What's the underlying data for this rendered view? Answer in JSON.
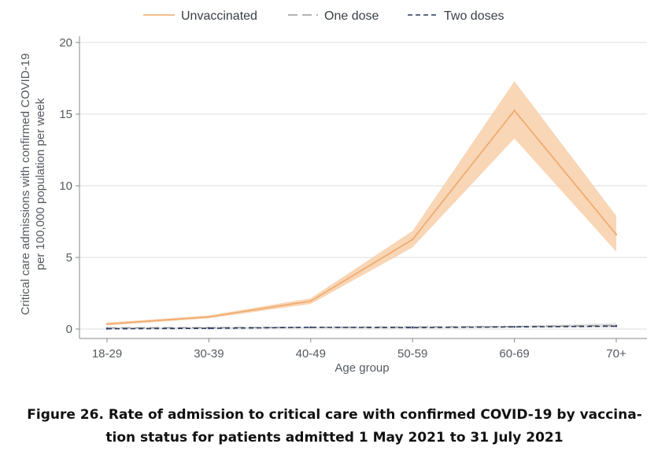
{
  "chart_data": {
    "type": "line",
    "xlabel": "Age group",
    "ylabel_lines": [
      "Critical care admissions with confirmed COVID-19",
      "per 100,000 population per week"
    ],
    "categories": [
      "18-29",
      "30-39",
      "40-49",
      "50-59",
      "60-69",
      "70+"
    ],
    "ylim": [
      0,
      20
    ],
    "yticks": [
      0,
      5,
      10,
      15,
      20
    ],
    "grid": true,
    "legend_position": "top",
    "series": [
      {
        "name": "Unvaccinated",
        "color": "#f0a868",
        "dash": "solid",
        "values": [
          0.35,
          0.85,
          1.95,
          6.25,
          15.25,
          6.6
        ],
        "ci_lower": [
          0.25,
          0.75,
          1.75,
          5.7,
          13.3,
          5.4
        ],
        "ci_upper": [
          0.45,
          0.95,
          2.15,
          6.85,
          17.3,
          7.9
        ],
        "band_color": "#f7cfa9"
      },
      {
        "name": "One dose",
        "color": "#9a9a9a",
        "dash": "long",
        "values": [
          0.08,
          0.1,
          0.12,
          0.14,
          0.17,
          0.25
        ],
        "ci_lower": [
          0.04,
          0.06,
          0.08,
          0.1,
          0.12,
          0.1
        ],
        "ci_upper": [
          0.12,
          0.14,
          0.16,
          0.18,
          0.22,
          0.42
        ],
        "band_color": "#dedede"
      },
      {
        "name": "Two doses",
        "color": "#2a3a60",
        "dash": "short",
        "values": [
          0.02,
          0.05,
          0.12,
          0.1,
          0.15,
          0.2
        ],
        "ci_lower": [
          0.0,
          0.02,
          0.08,
          0.07,
          0.11,
          0.15
        ],
        "ci_upper": [
          0.05,
          0.08,
          0.16,
          0.13,
          0.19,
          0.26
        ],
        "band_color": "#d8dbe3"
      }
    ]
  },
  "caption": {
    "line1": "Figure 26. Rate of admission to critical care with confirmed COVID-19 by vaccina-",
    "line2": "tion status for patients admitted 1 May 2021 to 31 July 2021"
  }
}
